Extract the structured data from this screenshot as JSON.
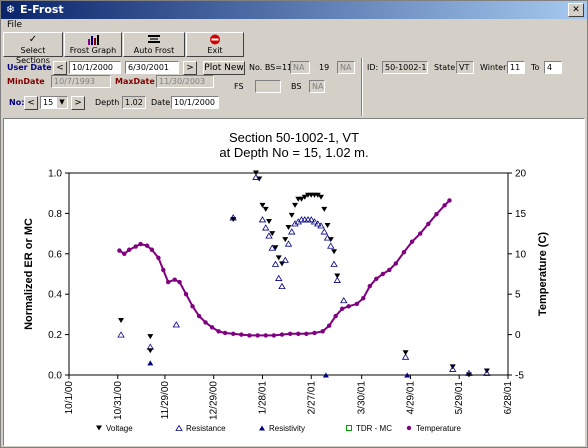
{
  "window": {
    "title": "E-Frost",
    "menu_file": "File"
  },
  "toolbar": [
    {
      "label": "Select Sections",
      "icon": "checkmark-icon"
    },
    {
      "label": "Frost Graph",
      "icon": "bar-chart-icon"
    },
    {
      "label": "Auto Frost",
      "icon": "auto-frost-icon"
    },
    {
      "label": "Exit",
      "icon": "stop-icon"
    }
  ],
  "form": {
    "user_date_label": "User Date",
    "user_date_from": "10/1/2000",
    "user_date_to": "6/30/2001",
    "prev_arrow": "<",
    "next_arrow": ">",
    "plot_new": "Plot New",
    "no_bs_label": "No. BS=11",
    "no_bs_value": "NA",
    "count_19": "19",
    "count_19_value": "NA",
    "min_date_label": "MinDate",
    "min_date": "10/7/1993",
    "max_date_label": "MaxDate",
    "max_date": "11/30/2003",
    "fs_label": "FS",
    "fs_value": "",
    "bs_label": "BS",
    "bs_value": "NA",
    "no_label": "No:",
    "no_value": "15",
    "depth_label": "Depth",
    "depth_value": "1.02",
    "date_label": "Date",
    "date_value": "10/1/2000",
    "id_label": "ID:",
    "id_value": "50-1002-1",
    "state_label": "State",
    "state_value": "VT",
    "winter_label": "Winter",
    "winter_from": "11",
    "to_label": "To",
    "winter_to": "4"
  },
  "chart_data": {
    "type": "scatter",
    "title": "Section 50-1002-1, VT",
    "subtitle": "at Depth No = 15, 1.02 m.",
    "ylabel": "Normalized ER or MC",
    "y2label": "Temperature (C)",
    "ylim": [
      0.0,
      1.0
    ],
    "y2lim": [
      -5,
      20
    ],
    "yticks": [
      "0.0",
      "0.2",
      "0.4",
      "0.6",
      "0.8",
      "1.0"
    ],
    "y2ticks": [
      "-5",
      "0",
      "5",
      "10",
      "15",
      "20"
    ],
    "xlim": [
      "2000-10-01",
      "2001-06-28"
    ],
    "xticks": [
      "10/1/00",
      "10/31/00",
      "11/29/00",
      "12/29/00",
      "1/28/01",
      "2/27/01",
      "3/30/01",
      "4/29/01",
      "5/29/01",
      "6/28/01"
    ],
    "legend_position": "bottom",
    "colors": {
      "voltage": "#000000",
      "resistance": "#000080",
      "resistivity": "#000080",
      "tdr": "#00a000",
      "temperature": "#800080"
    },
    "series": [
      {
        "name": "Voltage",
        "marker": "triangle-down-filled",
        "axis": "left",
        "points": [
          [
            "2000-11-02",
            0.27
          ],
          [
            "2000-11-20",
            0.19
          ],
          [
            "2000-11-20",
            0.12
          ],
          [
            "2001-01-10",
            0.77
          ],
          [
            "2001-01-24",
            1.0
          ],
          [
            "2001-01-26",
            0.97
          ],
          [
            "2001-01-28",
            0.84
          ],
          [
            "2001-01-30",
            0.82
          ],
          [
            "2001-02-01",
            0.76
          ],
          [
            "2001-02-03",
            0.7
          ],
          [
            "2001-02-05",
            0.63
          ],
          [
            "2001-02-07",
            0.58
          ],
          [
            "2001-02-09",
            0.55
          ],
          [
            "2001-02-11",
            0.67
          ],
          [
            "2001-02-13",
            0.73
          ],
          [
            "2001-02-15",
            0.79
          ],
          [
            "2001-02-17",
            0.84
          ],
          [
            "2001-02-19",
            0.87
          ],
          [
            "2001-02-21",
            0.87
          ],
          [
            "2001-02-23",
            0.88
          ],
          [
            "2001-02-25",
            0.89
          ],
          [
            "2001-02-27",
            0.89
          ],
          [
            "2001-03-01",
            0.89
          ],
          [
            "2001-03-03",
            0.89
          ],
          [
            "2001-03-05",
            0.88
          ],
          [
            "2001-03-07",
            0.82
          ],
          [
            "2001-03-09",
            0.74
          ],
          [
            "2001-03-11",
            0.67
          ],
          [
            "2001-03-13",
            0.61
          ],
          [
            "2001-03-15",
            0.49
          ],
          [
            "2001-04-26",
            0.11
          ],
          [
            "2001-05-25",
            0.04
          ],
          [
            "2001-06-04",
            0.0
          ],
          [
            "2001-06-15",
            0.02
          ]
        ]
      },
      {
        "name": "Resistance",
        "marker": "triangle-up-open",
        "axis": "left",
        "points": [
          [
            "2000-11-02",
            0.2
          ],
          [
            "2000-11-20",
            0.14
          ],
          [
            "2000-12-06",
            0.25
          ],
          [
            "2001-01-10",
            0.78
          ],
          [
            "2001-01-24",
            0.98
          ],
          [
            "2001-01-28",
            0.77
          ],
          [
            "2001-01-30",
            0.73
          ],
          [
            "2001-02-01",
            0.69
          ],
          [
            "2001-02-03",
            0.63
          ],
          [
            "2001-02-05",
            0.55
          ],
          [
            "2001-02-07",
            0.48
          ],
          [
            "2001-02-09",
            0.44
          ],
          [
            "2001-02-11",
            0.57
          ],
          [
            "2001-02-13",
            0.65
          ],
          [
            "2001-02-15",
            0.71
          ],
          [
            "2001-02-17",
            0.75
          ],
          [
            "2001-02-19",
            0.76
          ],
          [
            "2001-02-21",
            0.77
          ],
          [
            "2001-02-23",
            0.77
          ],
          [
            "2001-02-25",
            0.77
          ],
          [
            "2001-02-27",
            0.77
          ],
          [
            "2001-03-01",
            0.76
          ],
          [
            "2001-03-03",
            0.75
          ],
          [
            "2001-03-05",
            0.74
          ],
          [
            "2001-03-07",
            0.71
          ],
          [
            "2001-03-09",
            0.68
          ],
          [
            "2001-03-11",
            0.64
          ],
          [
            "2001-03-13",
            0.55
          ],
          [
            "2001-03-15",
            0.47
          ],
          [
            "2001-03-19",
            0.37
          ],
          [
            "2001-04-26",
            0.09
          ],
          [
            "2001-05-25",
            0.03
          ],
          [
            "2001-06-04",
            0.01
          ],
          [
            "2001-06-15",
            0.01
          ]
        ]
      },
      {
        "name": "Resistivity",
        "marker": "triangle-up-filled",
        "axis": "left",
        "points": [
          [
            "2000-11-20",
            0.06
          ],
          [
            "2001-03-08",
            0.0
          ],
          [
            "2001-04-27",
            0.0
          ]
        ]
      },
      {
        "name": "TDR - MC",
        "marker": "square-open",
        "axis": "left",
        "points": []
      },
      {
        "name": "Temperature",
        "marker": "circle-filled-line",
        "axis": "right",
        "points": [
          [
            "2000-11-01",
            10.4
          ],
          [
            "2000-11-04",
            10.0
          ],
          [
            "2000-11-07",
            10.5
          ],
          [
            "2000-11-11",
            10.9
          ],
          [
            "2000-11-14",
            11.2
          ],
          [
            "2000-11-18",
            11.0
          ],
          [
            "2000-11-21",
            10.5
          ],
          [
            "2000-11-25",
            9.5
          ],
          [
            "2000-11-28",
            8.0
          ],
          [
            "2000-12-01",
            6.5
          ],
          [
            "2000-12-05",
            6.8
          ],
          [
            "2000-12-08",
            6.5
          ],
          [
            "2000-12-12",
            5.0
          ],
          [
            "2000-12-16",
            3.5
          ],
          [
            "2000-12-20",
            2.3
          ],
          [
            "2000-12-24",
            1.5
          ],
          [
            "2000-12-28",
            0.9
          ],
          [
            "2001-01-01",
            0.4
          ],
          [
            "2001-01-05",
            0.2
          ],
          [
            "2001-01-10",
            0.1
          ],
          [
            "2001-01-15",
            0.0
          ],
          [
            "2001-01-20",
            -0.1
          ],
          [
            "2001-01-25",
            -0.1
          ],
          [
            "2001-01-30",
            -0.1
          ],
          [
            "2001-02-04",
            -0.1
          ],
          [
            "2001-02-09",
            0.0
          ],
          [
            "2001-02-14",
            0.1
          ],
          [
            "2001-02-19",
            0.1
          ],
          [
            "2001-02-24",
            0.1
          ],
          [
            "2001-03-01",
            0.2
          ],
          [
            "2001-03-06",
            0.4
          ],
          [
            "2001-03-10",
            1.1
          ],
          [
            "2001-03-14",
            2.3
          ],
          [
            "2001-03-18",
            3.2
          ],
          [
            "2001-03-22",
            3.5
          ],
          [
            "2001-03-27",
            3.8
          ],
          [
            "2001-03-31",
            4.5
          ],
          [
            "2001-04-04",
            6.0
          ],
          [
            "2001-04-08",
            6.9
          ],
          [
            "2001-04-12",
            7.5
          ],
          [
            "2001-04-16",
            8.0
          ],
          [
            "2001-04-20",
            8.8
          ],
          [
            "2001-04-25",
            10.2
          ],
          [
            "2001-04-30",
            11.5
          ],
          [
            "2001-05-05",
            12.5
          ],
          [
            "2001-05-10",
            13.7
          ],
          [
            "2001-05-15",
            14.9
          ],
          [
            "2001-05-20",
            16.0
          ],
          [
            "2001-05-23",
            16.6
          ]
        ]
      }
    ]
  }
}
